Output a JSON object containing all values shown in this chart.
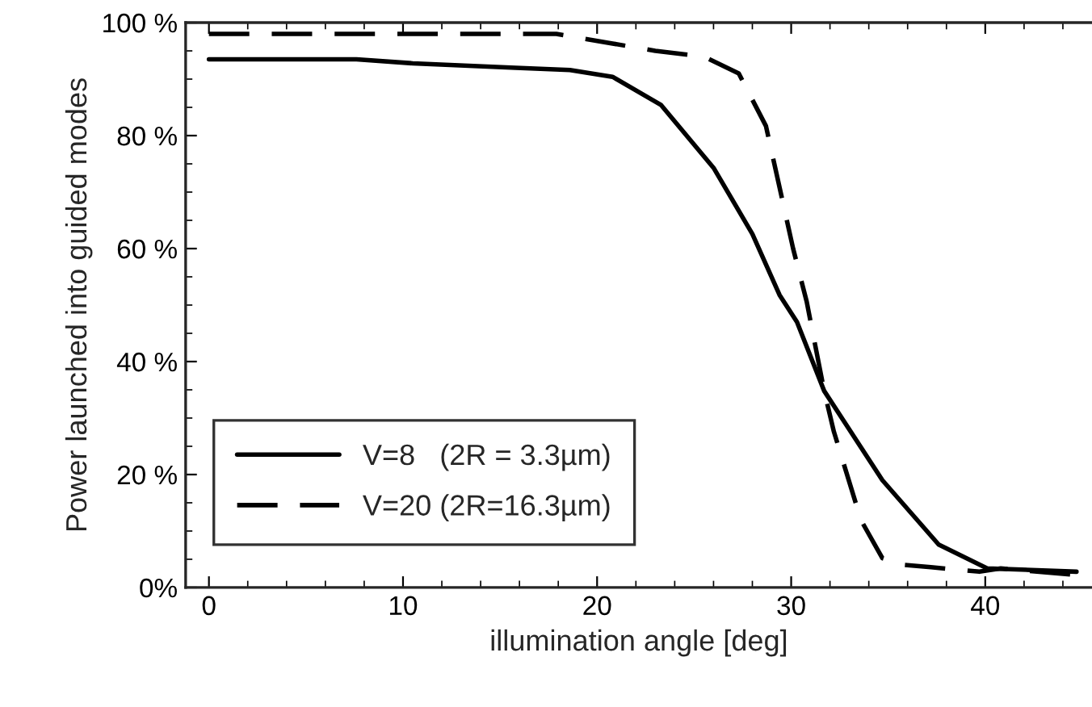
{
  "chart_data": {
    "type": "line",
    "xlabel": "illumination angle [deg]",
    "ylabel": "Power launched into guided modes",
    "xlim": [
      -1.2,
      45.5
    ],
    "xticks": [
      0,
      10,
      20,
      30,
      40
    ],
    "ylim": [
      0,
      100
    ],
    "yticks": [
      {
        "value": 0,
        "label": "0%"
      },
      {
        "value": 20,
        "label": "20 %"
      },
      {
        "value": 40,
        "label": "40 %"
      },
      {
        "value": 60,
        "label": "60 %"
      },
      {
        "value": 80,
        "label": "80 %"
      },
      {
        "value": 100,
        "label": "100 %"
      }
    ],
    "grid": false,
    "legend": "bottom left",
    "series": [
      {
        "name": "V=8   (2R = 3.3µm)",
        "color": "#000000",
        "line_style": "solid",
        "x": [
          0,
          7.6,
          10.5,
          15.8,
          18.6,
          20.8,
          23.3,
          26,
          28,
          29.4,
          30.3,
          31.7,
          34.7,
          37.6,
          40.1,
          44.7
        ],
        "values": [
          93.5,
          93.5,
          92.8,
          92,
          91.6,
          90.4,
          85.4,
          74.3,
          62.6,
          51.8,
          47,
          34.8,
          19,
          7.6,
          3.4,
          2.8
        ]
      },
      {
        "name": "V=20 (2R=16.3µm)",
        "color": "#000000",
        "line_style": "dashed",
        "x": [
          0,
          17.9,
          20.8,
          23,
          25.5,
          27.3,
          28.7,
          30.1,
          30.8,
          31.7,
          32.2,
          33.6,
          34.7,
          35.8,
          37.2,
          39.7,
          40.8,
          44.7
        ],
        "values": [
          98,
          98,
          96.3,
          95,
          94,
          91,
          81.7,
          60,
          50.6,
          34.8,
          27.6,
          11.9,
          5.2,
          4,
          3.6,
          2.8,
          3.4,
          2.2
        ]
      }
    ]
  }
}
